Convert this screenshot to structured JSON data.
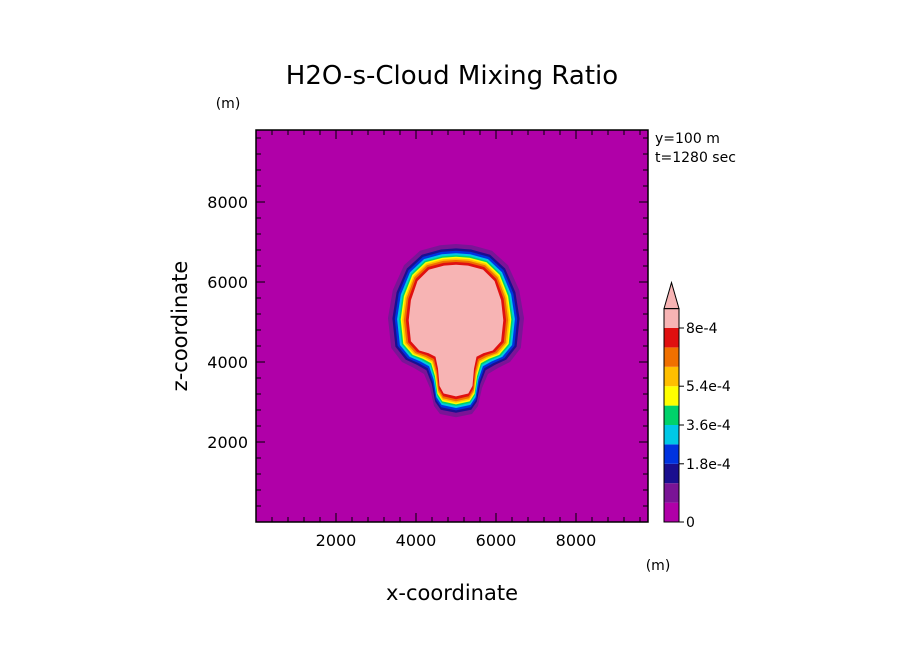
{
  "chart_data": {
    "type": "heatmap",
    "title": "H2O-s-Cloud Mixing Ratio",
    "xlabel": "x-coordinate",
    "ylabel": "z-coordinate",
    "x_unit": "(m)",
    "y_unit": "(m)",
    "xlim": [
      0,
      9800
    ],
    "ylim": [
      0,
      9800
    ],
    "x_ticks": [
      "2000",
      "4000",
      "6000",
      "8000"
    ],
    "y_ticks": [
      "2000",
      "4000",
      "6000",
      "8000"
    ],
    "annotations": [
      "y=100 m",
      "t=1280 sec"
    ],
    "grid": false,
    "colorbar": {
      "position": "right",
      "levels": [
        0,
        9e-05,
        0.00018,
        0.00027,
        0.00036,
        0.00045,
        0.00054,
        0.00063,
        0.00072,
        0.0008
      ],
      "tick_labels": [
        "0",
        "1.8e-4",
        "3.6e-4",
        "5.4e-4",
        "8e-4"
      ],
      "tick_values": [
        0,
        0.00018,
        0.00036,
        0.00054,
        0.0008
      ],
      "colors": [
        "#b000a8",
        "#7a1496",
        "#1a0f8f",
        "#0033e0",
        "#00c8e6",
        "#00d26a",
        "#ffff00",
        "#ffbf00",
        "#f07000",
        "#e01010",
        "#f7b4b4"
      ],
      "extend": "max"
    },
    "field": {
      "description_kind": "radial-contour",
      "background_value": 0,
      "max_value": 0.0008,
      "blob_outline_x": [
        5000,
        5400,
        5900,
        6300,
        6580,
        6700,
        6620,
        6350,
        6050,
        5800,
        5650,
        5550,
        5400,
        5000,
        4600,
        4450,
        4350,
        4200,
        3950,
        3650,
        3380,
        3300,
        3420,
        3700,
        4100,
        4600
      ],
      "blob_outline_y": [
        6950,
        6920,
        6780,
        6420,
        5800,
        5100,
        4350,
        4000,
        3850,
        3700,
        3350,
        2900,
        2700,
        2620,
        2700,
        2900,
        3350,
        3700,
        3850,
        4000,
        4350,
        5100,
        5800,
        6420,
        6780,
        6920
      ]
    }
  }
}
